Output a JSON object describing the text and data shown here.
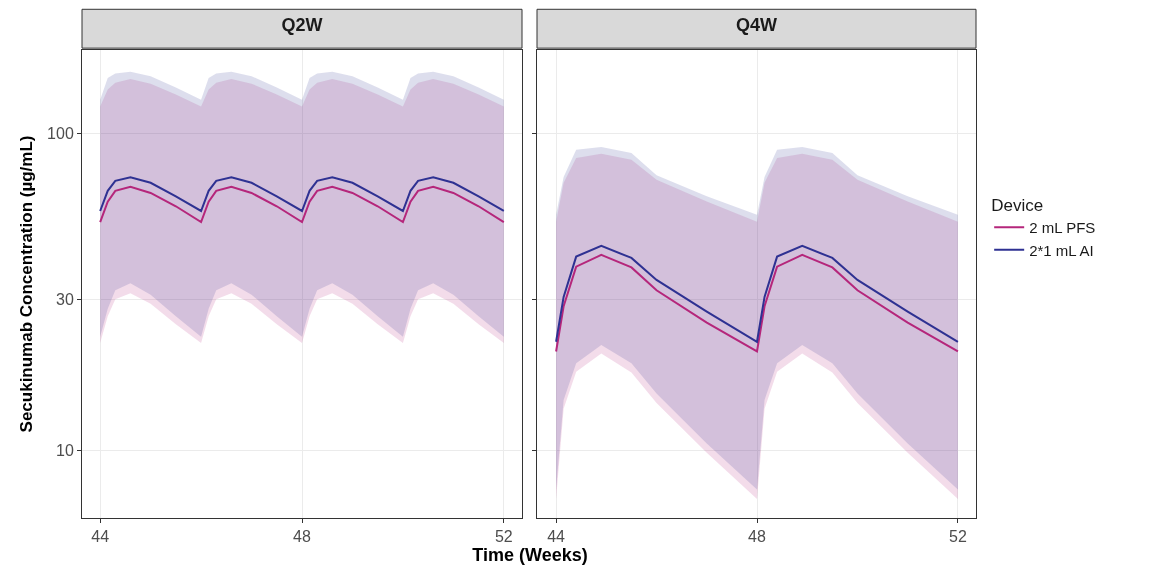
{
  "chart_data": [
    {
      "type": "line",
      "title": "Q2W",
      "xlabel": "Time (Weeks)",
      "ylabel": "Secukinumab Concentration (µg/mL)",
      "log": "y",
      "grid": true,
      "legend": false,
      "marker": "none",
      "line_style": "solid",
      "xlim": [
        43.64,
        52.36
      ],
      "xticks": [
        44,
        48,
        52
      ],
      "ylim": [
        6.1,
        184
      ],
      "yticks": [
        10,
        30,
        100
      ],
      "x": [
        44,
        44.15,
        44.3,
        44.6,
        45,
        45.5,
        46,
        46.15,
        46.3,
        46.6,
        47,
        47.5,
        48,
        48.15,
        48.3,
        48.6,
        49,
        49.5,
        50,
        50.15,
        50.3,
        50.6,
        51,
        51.5,
        52
      ],
      "series": [
        {
          "color": "#b5267b",
          "values": [
            52.6,
            61,
            66,
            68,
            65,
            59,
            52.6,
            61,
            66,
            68,
            65,
            59,
            52.6,
            61,
            66,
            68,
            65,
            59,
            52.6,
            61,
            66,
            68,
            65,
            59,
            52.6
          ],
          "lower": [
            21.8,
            26.5,
            30,
            31.3,
            29,
            25,
            21.8,
            26.5,
            30,
            31.3,
            29,
            25,
            21.8,
            26.5,
            30,
            31.3,
            29,
            25,
            21.8,
            26.5,
            30,
            31.3,
            29,
            25,
            21.8
          ],
          "upper": [
            122,
            138,
            145,
            149,
            144,
            133,
            122,
            138,
            145,
            149,
            144,
            133,
            122,
            138,
            145,
            149,
            144,
            133,
            122,
            138,
            145,
            149,
            144,
            133,
            122
          ]
        },
        {
          "color": "#2e3192",
          "values": [
            57,
            66,
            71,
            72.8,
            70,
            63.4,
            57,
            66,
            71,
            72.8,
            70,
            63.4,
            57,
            66,
            71,
            72.8,
            70,
            63.4,
            57,
            66,
            71,
            72.8,
            70,
            63.4,
            57
          ],
          "lower": [
            22.8,
            28,
            32,
            33.7,
            31,
            26.5,
            22.8,
            28,
            32,
            33.7,
            31,
            26.5,
            22.8,
            28,
            32,
            33.7,
            31,
            26.5,
            22.8,
            28,
            32,
            33.7,
            31,
            26.5,
            22.8
          ],
          "upper": [
            128,
            150,
            155,
            157,
            152,
            140,
            128,
            150,
            155,
            157,
            152,
            140,
            128,
            150,
            155,
            157,
            152,
            140,
            128,
            150,
            155,
            157,
            152,
            140,
            128
          ]
        }
      ]
    },
    {
      "type": "line",
      "title": "Q4W",
      "legend_title": "Device",
      "log": "y",
      "grid": true,
      "legend": "right",
      "marker": "none",
      "line_style": "solid",
      "tick_labels": "x",
      "xlim": [
        43.62,
        52.36
      ],
      "xticks": [
        44,
        48,
        52
      ],
      "ylim": [
        6.1,
        184
      ],
      "yticks": [
        10,
        30,
        100
      ],
      "x": [
        44,
        44.15,
        44.4,
        44.9,
        45.5,
        46,
        47,
        48,
        48.15,
        48.4,
        48.9,
        49.5,
        50,
        51,
        52
      ],
      "series": [
        {
          "name": "2 mL PFS",
          "color": "#b5267b",
          "values": [
            20.5,
            28.5,
            38,
            41.4,
            37.8,
            32,
            25.3,
            20.5,
            28.5,
            38,
            41.4,
            37.8,
            32,
            25.3,
            20.5
          ],
          "lower": [
            7.0,
            13.5,
            17.7,
            20.2,
            17.6,
            14.1,
            9.8,
            7.0,
            13.5,
            17.7,
            20.2,
            17.6,
            14.1,
            9.8,
            7.0
          ],
          "upper": [
            52.7,
            70,
            83.8,
            86.5,
            82.8,
            71.5,
            61.1,
            52.7,
            70,
            83.8,
            86.5,
            82.8,
            71.5,
            61.1,
            52.7
          ]
        },
        {
          "name": "2*1 mL AI",
          "color": "#2e3192",
          "values": [
            22.0,
            30.5,
            40.9,
            44.2,
            40.5,
            34.5,
            27.4,
            22.0,
            30.5,
            40.9,
            44.2,
            40.5,
            34.5,
            27.4,
            22.0
          ],
          "lower": [
            7.5,
            14.4,
            18.8,
            21.5,
            18.8,
            15.1,
            10.5,
            7.5,
            14.4,
            18.8,
            21.5,
            18.8,
            15.1,
            10.5,
            7.5
          ],
          "upper": [
            55.5,
            73,
            89,
            90.8,
            87,
            74,
            63.4,
            55.5,
            73,
            89,
            90.8,
            87,
            74,
            63.4,
            55.5
          ]
        }
      ]
    }
  ]
}
